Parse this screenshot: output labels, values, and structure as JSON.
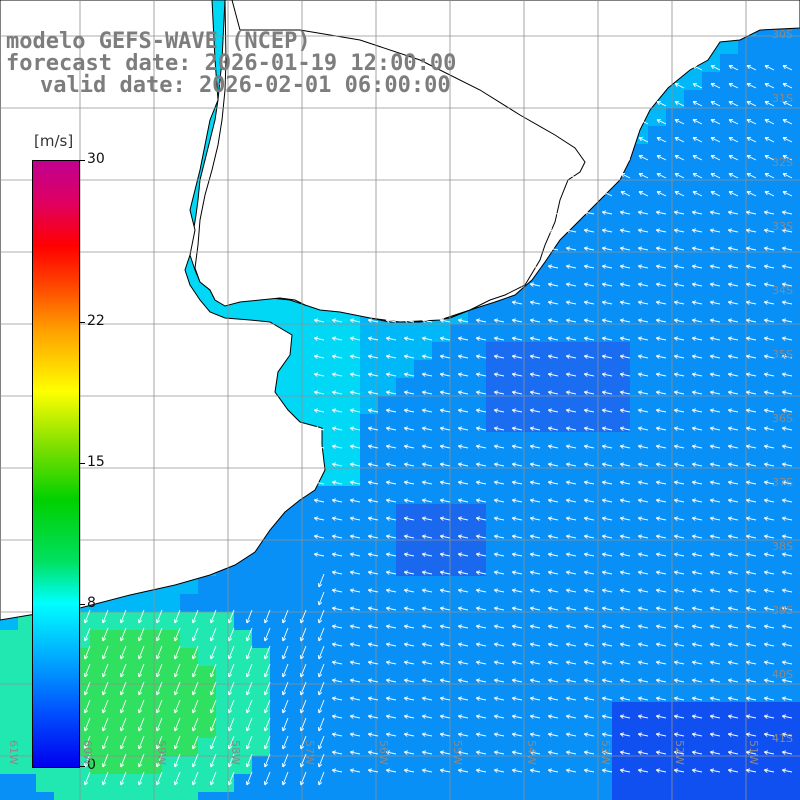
{
  "title": {
    "line1": "modelo GEFS-WAVE (NCEP)",
    "line2": "forecast date: 2026-01-19 12:00:00",
    "line3": "valid date: 2026-02-01 06:00:00"
  },
  "colorbar": {
    "unit": "[m/s]",
    "ticks": [
      "30",
      "22",
      "15",
      "8",
      "0"
    ],
    "tick_values": [
      30,
      22,
      15,
      8,
      0
    ],
    "range": [
      0,
      30
    ],
    "colors": [
      "#0000ee",
      "#00a0ff",
      "#00ffff",
      "#00d000",
      "#ffff00",
      "#ff0000",
      "#c00090"
    ]
  },
  "map": {
    "land_color": "#ffffff",
    "grid_color": "#909090",
    "wind_arrow_color": "#ffffff",
    "lon_labels": [
      "61W",
      "60W",
      "59W",
      "58W",
      "57W",
      "56W",
      "55W",
      "54W",
      "53W",
      "52W",
      "51W"
    ],
    "lat_labels": [
      "30S",
      "31S",
      "32S",
      "33S",
      "34S",
      "35S",
      "36S",
      "37S",
      "38S",
      "39S",
      "40S",
      "41S"
    ],
    "field_description": "wind speed over ocean with direction arrows; land in white"
  }
}
